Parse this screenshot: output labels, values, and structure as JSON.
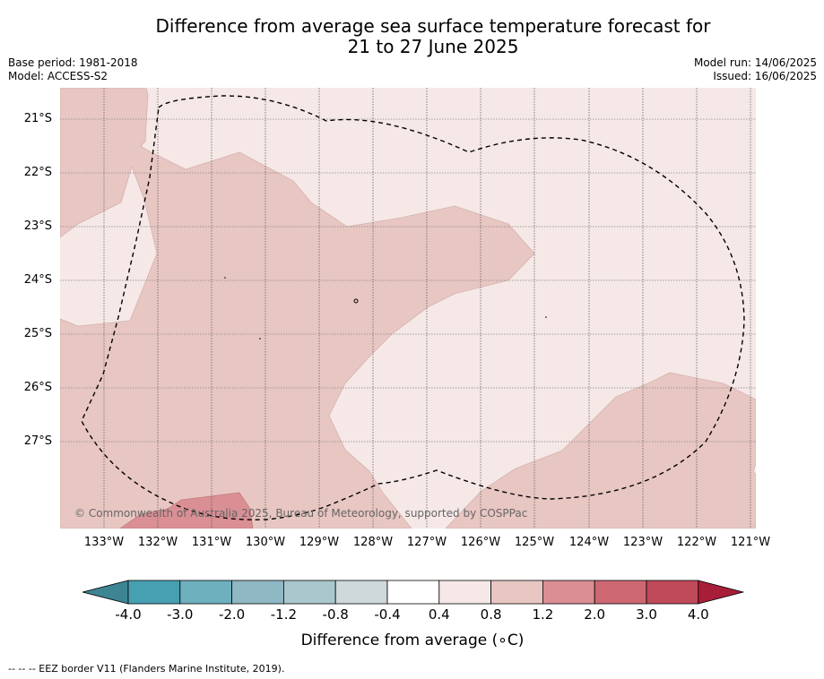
{
  "title_line1": "Difference from average sea surface temperature forecast for",
  "title_line2": "21 to 27 June 2025",
  "base_period": "Base period: 1981-2018",
  "model": "Model: ACCESS-S2",
  "model_run": "Model run: 14/06/2025",
  "issued": "Issued: 16/06/2025",
  "copyright": "© Commonwealth of Australia 2025, Bureau of Meteorology, supported by COSPPac",
  "lat_labels": [
    "21°S",
    "22°S",
    "23°S",
    "24°S",
    "25°S",
    "26°S",
    "27°S"
  ],
  "lon_labels": [
    "133°W",
    "132°W",
    "131°W",
    "130°W",
    "129°W",
    "128°W",
    "127°W",
    "126°W",
    "125°W",
    "124°W",
    "123°W",
    "122°W",
    "121°W"
  ],
  "colorbar": {
    "ticks": [
      "-4.0",
      "-3.0",
      "-2.0",
      "-1.2",
      "-0.8",
      "-0.4",
      "0.4",
      "0.8",
      "1.2",
      "2.0",
      "3.0",
      "4.0"
    ],
    "colors": [
      "#3d8593",
      "#47a0b2",
      "#6eb0bd",
      "#8fb8c4",
      "#a9c7cc",
      "#cfd8da",
      "#ffffff",
      "#f5e8e7",
      "#e8c6c2",
      "#d98f94",
      "#cd6873",
      "#bf4a59",
      "#a81e38"
    ],
    "label": "Difference from average (∘C)"
  },
  "legend_colors": {
    "band_0.4_0.8": "#f5e8e7",
    "band_0.8_1.2": "#e8c6c2",
    "band_1.2_2.0": "#d98f94"
  },
  "footnote": "--  --  -- EEZ border V11 (Flanders Marine Institute, 2019)."
}
